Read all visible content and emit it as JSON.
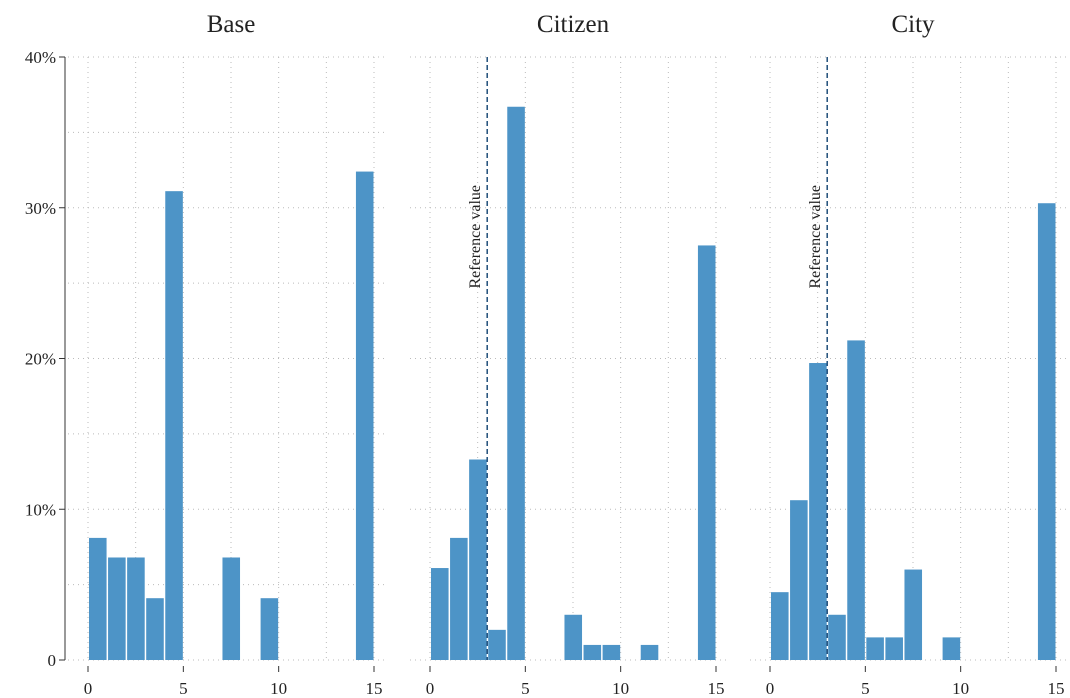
{
  "chart_data": [
    {
      "type": "histogram",
      "title": "Base",
      "bins": [
        0,
        1,
        2,
        3,
        4,
        5,
        6,
        7,
        8,
        9,
        10,
        11,
        12,
        13,
        14,
        15
      ],
      "values": [
        8.1,
        6.8,
        6.8,
        4.1,
        31.1,
        0,
        0,
        6.8,
        0,
        4.1,
        0,
        0,
        0,
        0,
        32.4
      ],
      "color": "#4d94c7",
      "xlim": [
        0,
        15
      ],
      "xticks": [
        0,
        5,
        10,
        15
      ],
      "xminor": [
        2.5,
        7.5,
        12.5
      ],
      "ylim": [
        0,
        40
      ],
      "yticks": [
        0,
        {
          "value": 10,
          "label": "10%"
        },
        {
          "value": 20,
          "label": "20%"
        },
        {
          "value": 30,
          "label": "30%"
        },
        {
          "value": 40,
          "label": "40%"
        }
      ],
      "yminor": [
        5,
        15,
        25,
        35
      ],
      "grid": true
    },
    {
      "type": "histogram",
      "title": "Citizen",
      "bins": [
        0,
        1,
        2,
        3,
        4,
        5,
        6,
        7,
        8,
        9,
        10,
        11,
        12,
        13,
        14,
        15
      ],
      "values": [
        6.1,
        8.1,
        13.3,
        2.0,
        36.7,
        0,
        0,
        3.0,
        1.0,
        1.0,
        0,
        1.0,
        0,
        0,
        27.5
      ],
      "color": "#4d94c7",
      "xlim": [
        0,
        15
      ],
      "xticks": [
        0,
        5,
        10,
        15
      ],
      "xminor": [
        2.5,
        7.5,
        12.5
      ],
      "ylim": [
        0,
        40
      ],
      "grid": true,
      "reference_line": {
        "x": 3,
        "label": "Reference value",
        "color": "#1f4e79"
      }
    },
    {
      "type": "histogram",
      "title": "City",
      "bins": [
        0,
        1,
        2,
        3,
        4,
        5,
        6,
        7,
        8,
        9,
        10,
        11,
        12,
        13,
        14,
        15
      ],
      "values": [
        4.5,
        10.6,
        19.7,
        3.0,
        21.2,
        1.5,
        1.5,
        6.0,
        0,
        1.5,
        0,
        0,
        0,
        0,
        30.3
      ],
      "color": "#4d94c7",
      "xlim": [
        0,
        15
      ],
      "xticks": [
        0,
        5,
        10,
        15
      ],
      "xminor": [
        2.5,
        7.5,
        12.5
      ],
      "ylim": [
        0,
        40
      ],
      "grid": true,
      "reference_line": {
        "x": 3,
        "label": "Reference value",
        "color": "#1f4e79"
      }
    }
  ]
}
